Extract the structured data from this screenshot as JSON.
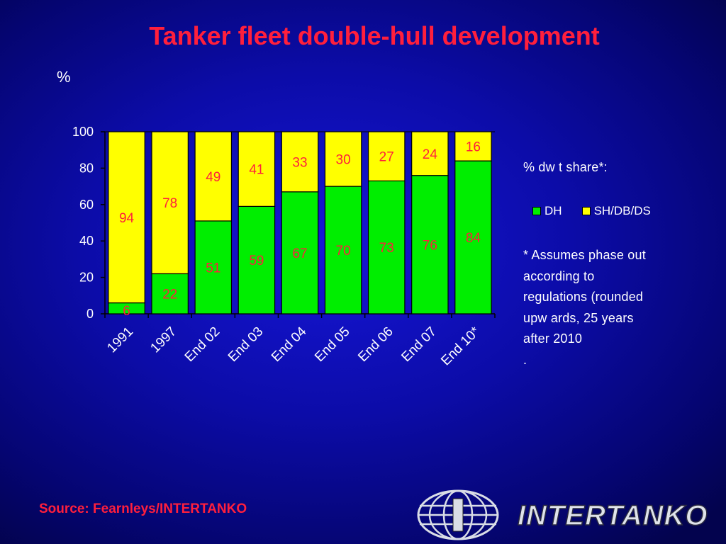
{
  "slide": {
    "title": "Tanker fleet double-hull development",
    "unit_label": "%",
    "source": "Source: Fearnleys/INTERTANKO",
    "logo_text": "INTERTANKO"
  },
  "side": {
    "legend_heading": "% dw t share*:",
    "note_lines": [
      "* Assumes phase out",
      "according to",
      "regulations (rounded",
      "upw ards, 25 years",
      "after 2010",
      "."
    ]
  },
  "colors": {
    "title": "#ff1f3c",
    "dh": "#00ee00",
    "sh": "#ffff00",
    "data_label": "#ff1f3c",
    "text": "#ffffff"
  },
  "chart_data": {
    "type": "bar",
    "stacked": true,
    "categories": [
      "1991",
      "1997",
      "End 02",
      "End 03",
      "End 04",
      "End 05",
      "End 06",
      "End 07",
      "End 10*"
    ],
    "series": [
      {
        "name": "DH",
        "values": [
          6,
          22,
          51,
          59,
          67,
          70,
          73,
          76,
          84
        ]
      },
      {
        "name": "SH/DB/DS",
        "values": [
          94,
          78,
          49,
          41,
          33,
          30,
          27,
          24,
          16
        ]
      }
    ],
    "ylim": [
      0,
      100
    ],
    "yticks": [
      0,
      20,
      40,
      60,
      80,
      100
    ],
    "ylabel": "%",
    "legend_position": "right"
  }
}
